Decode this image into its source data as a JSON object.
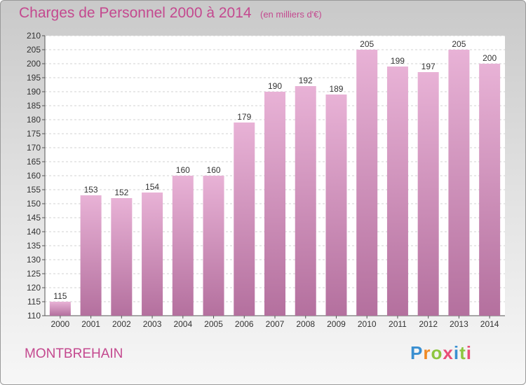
{
  "header": {
    "title": "Charges de Personnel 2000 à 2014",
    "subtitle": "(en milliers d'€)"
  },
  "footer": {
    "commune": "MONTBREHAIN",
    "logo_text": "Proxiti"
  },
  "colors": {
    "bar_top": "#e8b2d6",
    "bar_bottom": "#b4709e",
    "accent": "#c4498f"
  },
  "chart_data": {
    "type": "bar",
    "title": "Charges de Personnel 2000 à 2014",
    "subtitle": "(en milliers d'€)",
    "xlabel": "",
    "ylabel": "",
    "categories": [
      "2000",
      "2001",
      "2002",
      "2003",
      "2004",
      "2005",
      "2006",
      "2007",
      "2008",
      "2009",
      "2010",
      "2011",
      "2012",
      "2013",
      "2014"
    ],
    "values": [
      115,
      153,
      152,
      154,
      160,
      160,
      179,
      190,
      192,
      189,
      205,
      199,
      197,
      205,
      200
    ],
    "ylim": [
      110,
      210
    ],
    "ytick_step": 5,
    "grid": true,
    "data_labels": true
  }
}
